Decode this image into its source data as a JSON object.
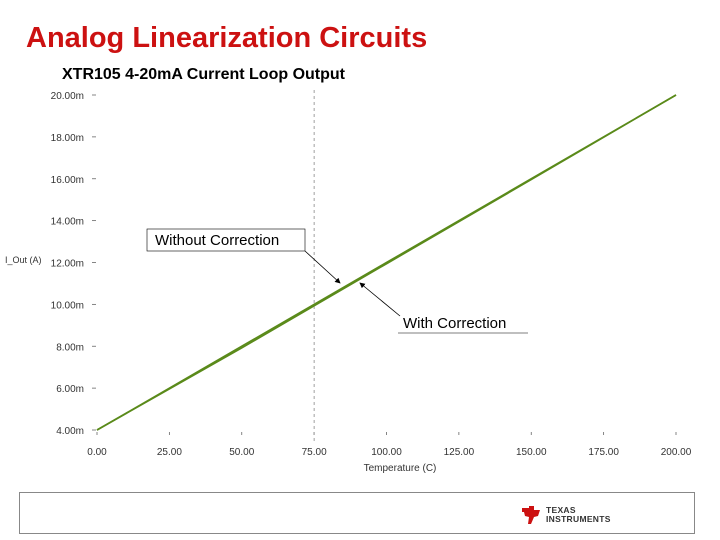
{
  "slide": {
    "title": "Analog Linearization Circuits",
    "subtitle": "XTR105 4-20mA Current Loop Output"
  },
  "logo": {
    "line1": "TEXAS",
    "line2": "INSTRUMENTS"
  },
  "colors": {
    "title": "#cc1111",
    "series": "#5a8a1a",
    "axis_text": "#333333"
  },
  "chart_data": {
    "type": "line",
    "title": "XTR105 4-20mA Current Loop Output",
    "xlabel": "Temperature (C)",
    "ylabel": "I_Out (A)",
    "xlim": [
      0,
      200
    ],
    "ylim": [
      4,
      20
    ],
    "x_ticks": [
      0,
      25,
      50,
      75,
      100,
      125,
      150,
      175,
      200
    ],
    "x_tick_labels": [
      "0.00",
      "25.00",
      "50.00",
      "75.00",
      "100.00",
      "125.00",
      "150.00",
      "175.00",
      "200.00"
    ],
    "y_ticks": [
      4,
      6,
      8,
      10,
      12,
      14,
      16,
      18,
      20
    ],
    "y_tick_labels": [
      "4.00m",
      "6.00m",
      "8.00m",
      "10.00m",
      "12.00m",
      "14.00m",
      "16.00m",
      "18.00m",
      "20.00m"
    ],
    "marker_x": 75,
    "series": [
      {
        "name": "Without Correction",
        "x": [
          0,
          50,
          100,
          150,
          200
        ],
        "y": [
          4.0,
          7.92,
          11.94,
          15.96,
          20.0
        ]
      },
      {
        "name": "With Correction",
        "x": [
          0,
          50,
          100,
          150,
          200
        ],
        "y": [
          4.0,
          8.0,
          12.0,
          16.0,
          20.0
        ]
      }
    ],
    "annotations": [
      {
        "text": "Without Correction",
        "target_x": 84,
        "target_y": 11.35
      },
      {
        "text": "With Correction",
        "target_x": 90,
        "target_y": 11.6
      }
    ]
  }
}
